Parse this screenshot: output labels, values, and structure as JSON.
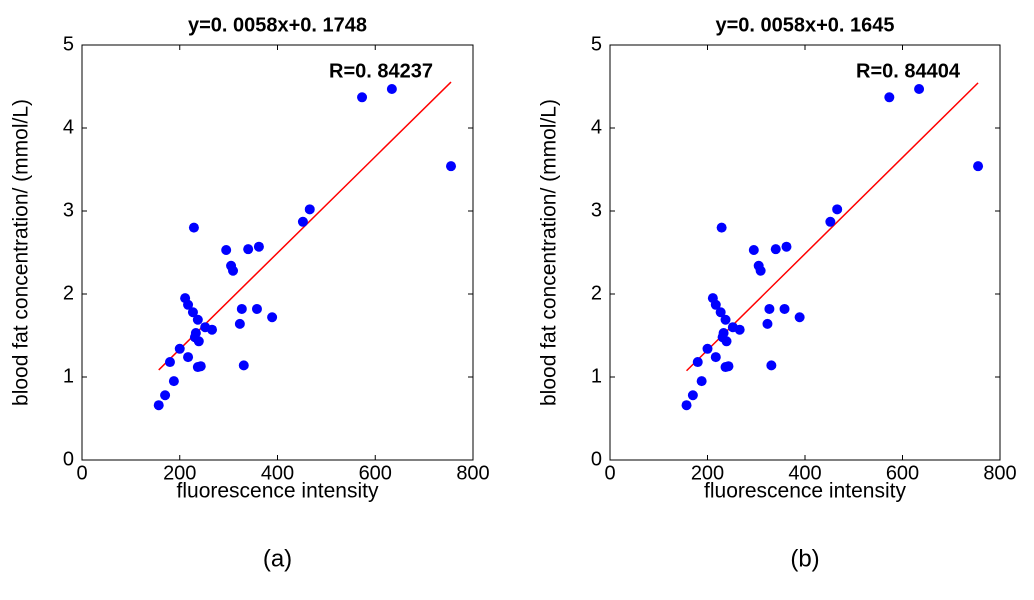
{
  "chart_data": [
    {
      "type": "scatter",
      "title": "y=0. 0058x+0. 1748",
      "annotation": "R=0. 84237",
      "caption": "(a)",
      "xlabel": "fluorescence intensity",
      "ylabel": "blood fat concentration/ (mmol/L)",
      "x": [
        157,
        170,
        180,
        188,
        200,
        211,
        217,
        217,
        229,
        227,
        231,
        233,
        237,
        237,
        243,
        239,
        252,
        266,
        295,
        305,
        309,
        323,
        327,
        331,
        340,
        358,
        362,
        389,
        452,
        466,
        573,
        634,
        755
      ],
      "values": [
        0.66,
        0.78,
        1.18,
        0.95,
        1.34,
        1.95,
        1.24,
        1.87,
        2.8,
        1.78,
        1.48,
        1.53,
        1.69,
        1.12,
        1.13,
        1.43,
        1.6,
        1.57,
        2.53,
        2.34,
        2.28,
        1.64,
        1.82,
        1.14,
        2.54,
        1.82,
        2.57,
        1.72,
        2.87,
        3.02,
        4.37,
        4.47,
        3.54
      ],
      "color": "#0000ff",
      "fit": {
        "slope": 0.0058,
        "intercept": 0.1748,
        "color": "#ff0000"
      },
      "xlim": [
        0,
        800
      ],
      "xticks": [
        0,
        200,
        400,
        600,
        800
      ],
      "ylim": [
        0,
        5
      ],
      "yticks": [
        0,
        1,
        2,
        3,
        4,
        5
      ]
    },
    {
      "type": "scatter",
      "title": "y=0. 0058x+0. 1645",
      "annotation": "R=0. 84404",
      "caption": "(b)",
      "xlabel": "fluorescence intensity",
      "ylabel": "blood fat concentration/ (mmol/L)",
      "x": [
        157,
        170,
        180,
        188,
        200,
        211,
        217,
        217,
        229,
        227,
        231,
        233,
        237,
        237,
        243,
        239,
        252,
        266,
        295,
        305,
        309,
        323,
        327,
        331,
        340,
        358,
        362,
        389,
        452,
        466,
        573,
        634,
        755
      ],
      "values": [
        0.66,
        0.78,
        1.18,
        0.95,
        1.34,
        1.95,
        1.24,
        1.87,
        2.8,
        1.78,
        1.48,
        1.53,
        1.69,
        1.12,
        1.13,
        1.43,
        1.6,
        1.57,
        2.53,
        2.34,
        2.28,
        1.64,
        1.82,
        1.14,
        2.54,
        1.82,
        2.57,
        1.72,
        2.87,
        3.02,
        4.37,
        4.47,
        3.54
      ],
      "color": "#0000ff",
      "fit": {
        "slope": 0.0058,
        "intercept": 0.1645,
        "color": "#ff0000"
      },
      "xlim": [
        0,
        800
      ],
      "xticks": [
        0,
        200,
        400,
        600,
        800
      ],
      "ylim": [
        0,
        5
      ],
      "yticks": [
        0,
        1,
        2,
        3,
        4,
        5
      ]
    }
  ]
}
